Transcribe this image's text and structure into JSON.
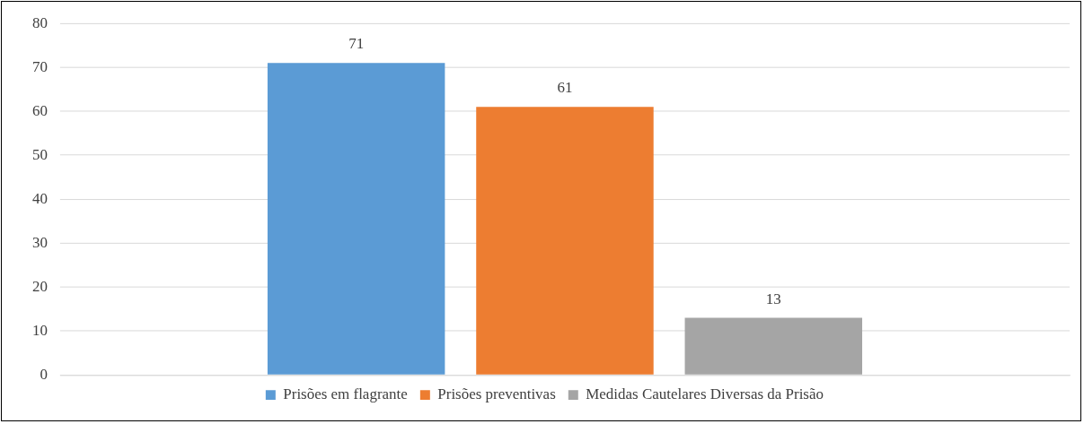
{
  "chart_data": {
    "type": "bar",
    "categories": [
      null
    ],
    "series": [
      {
        "name": "Prisões em flagrante",
        "color": "#5b9bd5",
        "values": [
          71
        ]
      },
      {
        "name": "Prisões preventivas",
        "color": "#ed7d31",
        "values": [
          61
        ]
      },
      {
        "name": "Medidas Cautelares Diversas da Prisão",
        "color": "#a5a5a5",
        "values": [
          13
        ]
      }
    ],
    "ylim": [
      0,
      80
    ],
    "yticks": [
      0,
      10,
      20,
      30,
      40,
      50,
      60,
      70,
      80
    ],
    "grid": "y",
    "legend": "bottom",
    "data_labels": true
  }
}
